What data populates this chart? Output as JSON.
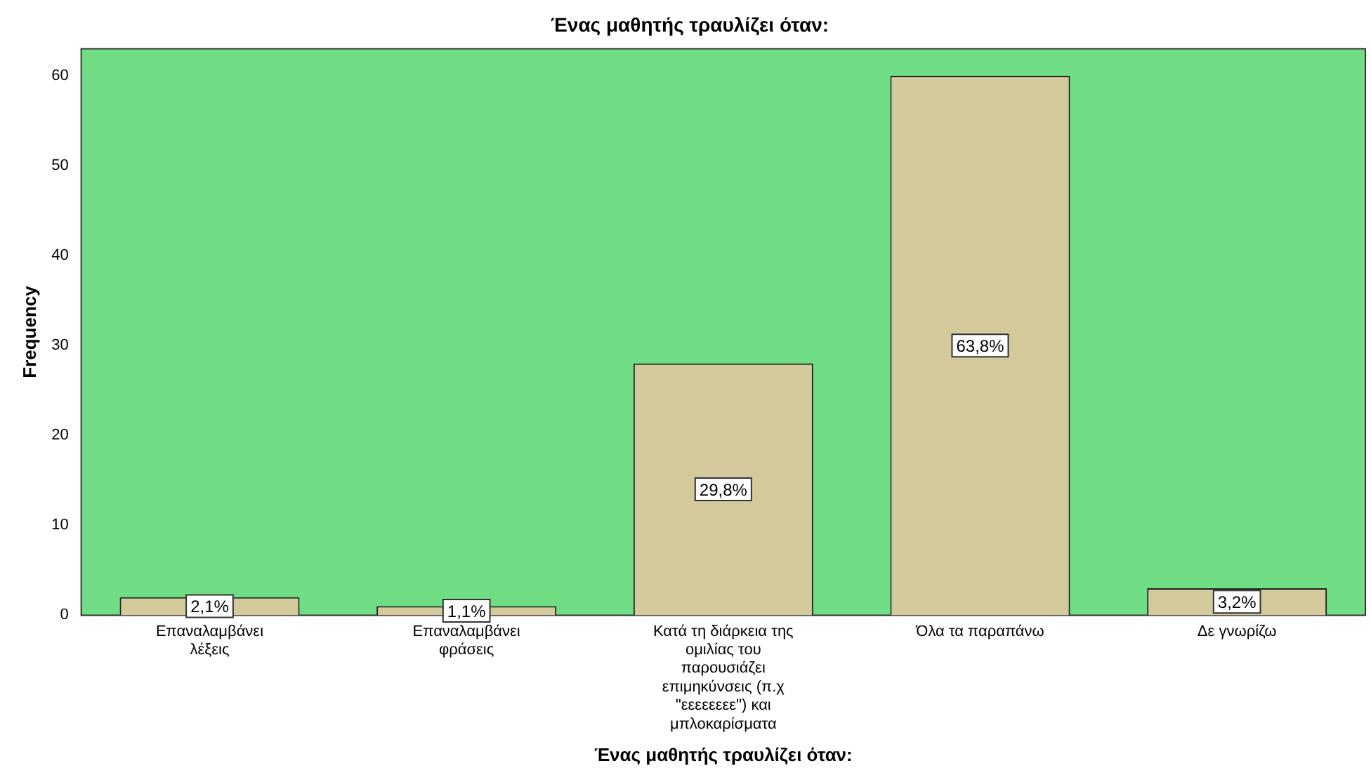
{
  "chart_data": {
    "type": "bar",
    "title": "Ένας μαθητής τραυλίζει όταν:",
    "xlabel": "Ένας μαθητής τραυλίζει όταν:",
    "ylabel": "Frequency",
    "categories": [
      "Επαναλαμβάνει λέξεις",
      "Επαναλαμβάνει φράσεις",
      "Κατά τη διάρκεια της ομιλίας του παρουσιάζει επιμηκύνσεις (π.χ \"εεεεεεεε\") και μπλοκαρίσματα",
      "Όλα τα παραπάνω",
      "Δε γνωρίζω"
    ],
    "values": [
      2,
      1,
      28,
      60,
      3
    ],
    "annotations": [
      {
        "text": "2,1%",
        "x": "Επαναλαμβάνει λέξεις",
        "y": 1
      },
      {
        "text": "1,1%",
        "x": "Επαναλαμβάνει φράσεις",
        "y": 0.5
      },
      {
        "text": "29,8%",
        "x": "Κατά τη διάρκεια της ομιλίας του παρουσιάζει επιμηκύνσεις (π.χ \"εεεεεεεε\") και μπλοκαρίσματα",
        "y": 14
      },
      {
        "text": "63,8%",
        "x": "Όλα τα παραπάνω",
        "y": 30
      },
      {
        "text": "3,2%",
        "x": "Δε γνωρίζω",
        "y": 1.5
      }
    ],
    "color": "#d3c99b",
    "ylim": [
      0,
      63
    ],
    "yticks": [
      0,
      10,
      20,
      30,
      40,
      50,
      60
    ],
    "grid": false,
    "legend": false
  }
}
